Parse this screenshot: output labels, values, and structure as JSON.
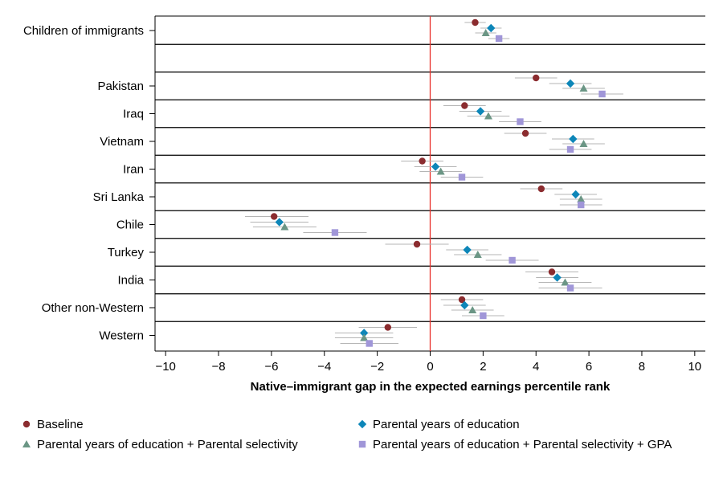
{
  "chart_data": {
    "type": "scatter",
    "title": "",
    "xlabel": "Native–immigrant gap in the expected earnings percentile rank",
    "ylabel": "",
    "xlim": [
      -10.4,
      10.4
    ],
    "xticks": [
      -10,
      -8,
      -6,
      -4,
      -2,
      0,
      2,
      4,
      6,
      8,
      10
    ],
    "xtick_labels": [
      "−10",
      "−8",
      "−6",
      "−4",
      "−2",
      "0",
      "2",
      "4",
      "6",
      "8",
      "10"
    ],
    "reference_line": {
      "x": 0,
      "color": "#e8302a"
    },
    "grid": false,
    "legend_position": "bottom",
    "categories": [
      "Children of immigrants",
      "",
      "Pakistan",
      "Iraq",
      "Vietnam",
      "Iran",
      "Sri Lanka",
      "Chile",
      "Turkey",
      "India",
      "Other non-Western",
      "Western"
    ],
    "series": [
      {
        "name": "Baseline",
        "marker": "circle",
        "color": "#8b2c2f",
        "values": [
          1.7,
          null,
          4.0,
          1.3,
          3.6,
          -0.3,
          4.2,
          -5.9,
          -0.5,
          4.6,
          1.2,
          -1.6
        ],
        "ci": [
          [
            1.3,
            2.1
          ],
          null,
          [
            3.2,
            4.8
          ],
          [
            0.5,
            2.1
          ],
          [
            2.8,
            4.4
          ],
          [
            -1.1,
            0.5
          ],
          [
            3.4,
            5.0
          ],
          [
            -7.0,
            -4.6
          ],
          [
            -1.7,
            0.7
          ],
          [
            3.6,
            5.6
          ],
          [
            0.4,
            2.0
          ],
          [
            -2.7,
            -0.5
          ]
        ]
      },
      {
        "name": "Parental years of education",
        "marker": "diamond",
        "color": "#0d86b8",
        "values": [
          2.3,
          null,
          5.3,
          1.9,
          5.4,
          0.2,
          5.5,
          -5.7,
          1.4,
          4.8,
          1.3,
          -2.5
        ],
        "ci": [
          [
            1.9,
            2.7
          ],
          null,
          [
            4.5,
            6.1
          ],
          [
            1.1,
            2.7
          ],
          [
            4.6,
            6.2
          ],
          [
            -0.6,
            1.0
          ],
          [
            4.7,
            6.3
          ],
          [
            -6.8,
            -4.6
          ],
          [
            0.6,
            2.2
          ],
          [
            4.0,
            5.6
          ],
          [
            0.5,
            2.1
          ],
          [
            -3.6,
            -1.4
          ]
        ]
      },
      {
        "name": "Parental years of education + Parental selectivity",
        "marker": "triangle",
        "color": "#6b9685",
        "values": [
          2.1,
          null,
          5.8,
          2.2,
          5.8,
          0.4,
          5.7,
          -5.5,
          1.8,
          5.1,
          1.6,
          -2.5
        ],
        "ci": [
          [
            1.7,
            2.5
          ],
          null,
          [
            5.0,
            6.6
          ],
          [
            1.4,
            3.0
          ],
          [
            5.0,
            6.6
          ],
          [
            -0.4,
            1.2
          ],
          [
            4.9,
            6.5
          ],
          [
            -6.7,
            -4.3
          ],
          [
            0.9,
            2.7
          ],
          [
            4.1,
            6.1
          ],
          [
            0.8,
            2.4
          ],
          [
            -3.6,
            -1.4
          ]
        ]
      },
      {
        "name": "Parental years of education + Parental selectivity + GPA",
        "marker": "square",
        "color": "#a096d8",
        "values": [
          2.6,
          null,
          6.5,
          3.4,
          5.3,
          1.2,
          5.7,
          -3.6,
          3.1,
          5.3,
          2.0,
          -2.3
        ],
        "ci": [
          [
            2.2,
            3.0
          ],
          null,
          [
            5.7,
            7.3
          ],
          [
            2.6,
            4.2
          ],
          [
            4.5,
            6.1
          ],
          [
            0.4,
            2.0
          ],
          [
            4.9,
            6.5
          ],
          [
            -4.8,
            -2.4
          ],
          [
            2.1,
            4.1
          ],
          [
            4.1,
            6.5
          ],
          [
            1.2,
            2.8
          ],
          [
            -3.4,
            -1.2
          ]
        ]
      }
    ]
  }
}
